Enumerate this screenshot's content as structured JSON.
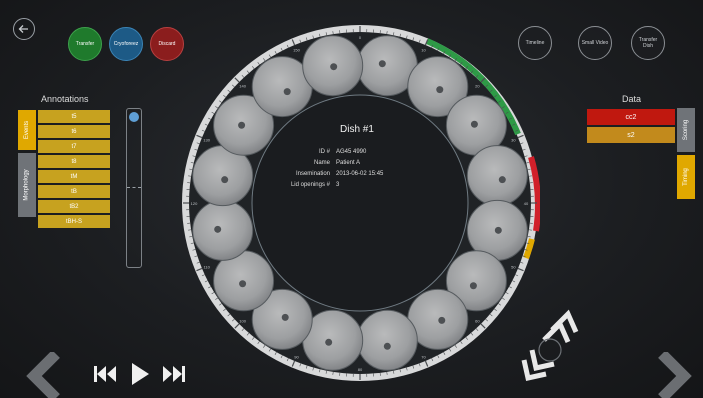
{
  "top_left_buttons": [
    {
      "label": "Transfer",
      "color": "#1f7a2c"
    },
    {
      "label": "Cryoforeez",
      "color": "#1d5a86"
    },
    {
      "label": "Discard",
      "color": "#8b1d1d"
    }
  ],
  "top_right_buttons": [
    {
      "label": "Timeline"
    },
    {
      "label": "Small Video"
    },
    {
      "label": "Transfer Dish"
    }
  ],
  "annotations": {
    "title": "Annotations",
    "items": [
      "t5",
      "t6",
      "t7",
      "t8",
      "tM",
      "tB",
      "tB2",
      "tBH-S"
    ],
    "tabs": [
      "Events",
      "Morphology"
    ]
  },
  "data_panel": {
    "title": "Data",
    "items": [
      {
        "label": "cc2",
        "color": "#c0180f"
      },
      {
        "label": "s2",
        "color": "#c28a1c"
      }
    ],
    "tabs": [
      "Scoring",
      "Timing"
    ]
  },
  "dish": {
    "title": "Dish #1",
    "fields": [
      {
        "label": "ID #",
        "value": "AG45 4990"
      },
      {
        "label": "Name",
        "value": "Patient A"
      },
      {
        "label": "Insemination",
        "value": "2013-06-02 15:45"
      },
      {
        "label": "Lid openings #",
        "value": "3"
      }
    ],
    "well_count": 16,
    "ring_ticks": [
      "0",
      "10",
      "20",
      "30",
      "40",
      "50",
      "60",
      "70",
      "80",
      "90",
      "100",
      "110",
      "120",
      "130",
      "140",
      "150"
    ]
  },
  "icons": {
    "back": "back-arrow-icon",
    "skip_back": "skip-back-icon",
    "play": "play-icon",
    "skip_forward": "skip-forward-icon",
    "prev": "chevron-left-icon",
    "next": "chevron-right-icon",
    "focus": "focus-chevrons-icon"
  }
}
